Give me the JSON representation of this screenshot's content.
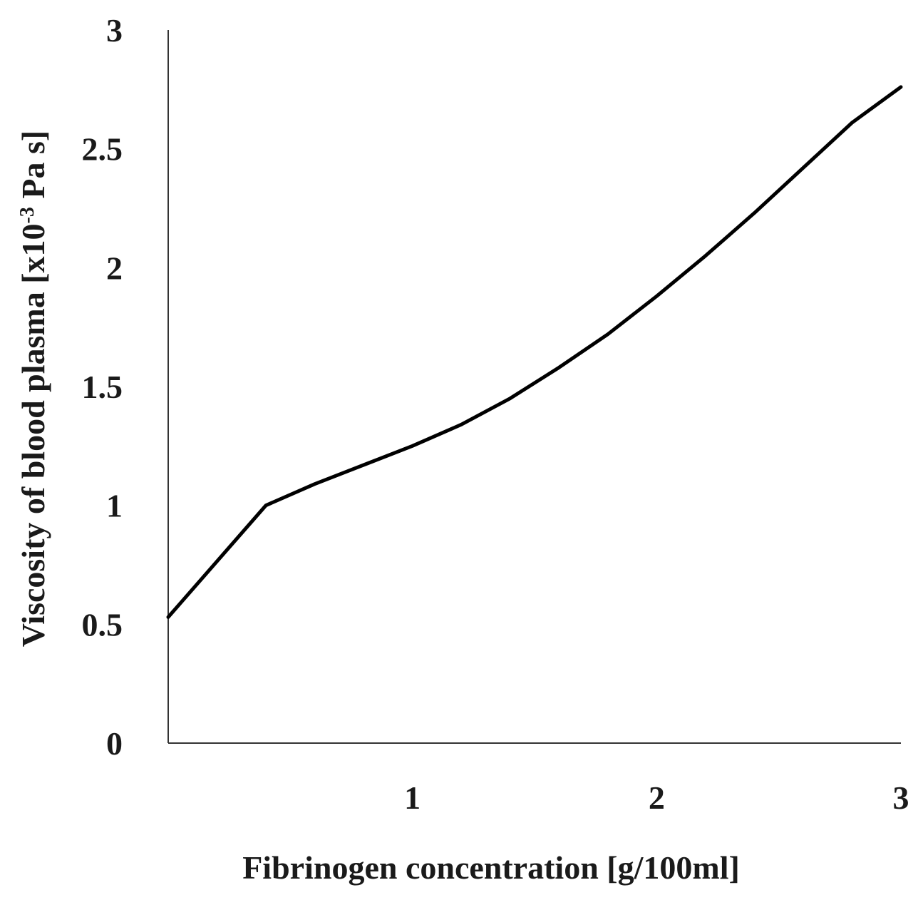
{
  "chart_data": {
    "type": "line",
    "title": "",
    "xlabel": "Fibrinogen concentration [g/100ml]",
    "ylabel": {
      "before": "Viscosity of blood plasma [x10",
      "sup": "-3",
      "after": " Pa s]"
    },
    "xlim": [
      0,
      3
    ],
    "ylim": [
      0,
      3
    ],
    "x_ticks": [
      1,
      2,
      3
    ],
    "x_tick_labels": [
      "1",
      "2",
      "3"
    ],
    "y_ticks": [
      0,
      0.5,
      1,
      1.5,
      2,
      2.5,
      3
    ],
    "y_tick_labels": [
      "0",
      "0.5",
      "1",
      "1.5",
      "2",
      "2.5",
      "3"
    ],
    "grid": false,
    "legend": "none",
    "line_color": "#000000",
    "series": [
      {
        "x": [
          0,
          0.4,
          0.6,
          0.8,
          1.0,
          1.2,
          1.4,
          1.6,
          1.8,
          2.0,
          2.2,
          2.4,
          2.6,
          2.8,
          3.0
        ],
        "y": [
          0.53,
          1.0,
          1.09,
          1.17,
          1.25,
          1.34,
          1.45,
          1.58,
          1.72,
          1.88,
          2.05,
          2.23,
          2.42,
          2.61,
          2.76
        ]
      }
    ]
  }
}
